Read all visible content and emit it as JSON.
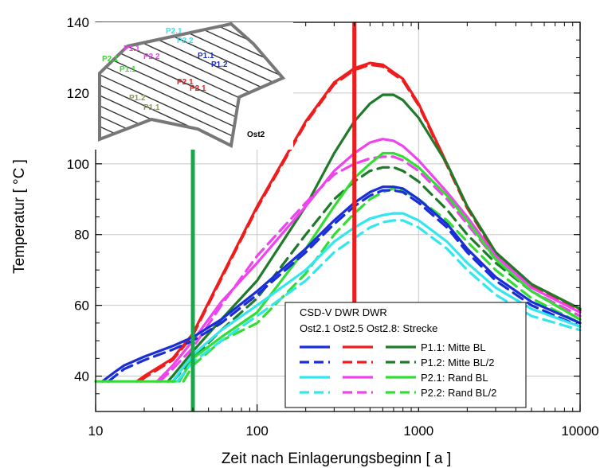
{
  "chart_data": {
    "type": "line",
    "xscale": "log",
    "xlim": [
      10,
      10000
    ],
    "ylim": [
      30,
      140
    ],
    "xticks": [
      10,
      100,
      1000,
      10000
    ],
    "xtick_labels": [
      "10",
      "100",
      "1000",
      "10000"
    ],
    "yticks": [
      40,
      60,
      80,
      100,
      120,
      140
    ],
    "ytick_labels": [
      "40",
      "60",
      "80",
      "100",
      "120",
      "140"
    ],
    "xlabel": "Zeit nach Einlagerungsbeginn   [ a ]",
    "ylabel": "Temperatur   [ °C ]",
    "grid": true,
    "legend": {
      "placement": "bottom-right",
      "header_line1": "CSD-V DWR   DWR",
      "header_line2": "Ost2.1 Ost2.5 Ost2.8: Strecke",
      "rows": [
        {
          "label": "P1.1: Mitte BL",
          "style": "solid",
          "colors": [
            "#1a2ed6",
            "#ee1c1c",
            "#1f7a2a"
          ]
        },
        {
          "label": "P1.2: Mitte BL/2",
          "style": "dashed",
          "colors": [
            "#1a2ed6",
            "#ee1c1c",
            "#1f7a2a"
          ]
        },
        {
          "label": "P2.1: Rand BL",
          "style": "solid",
          "colors": [
            "#33e6ee",
            "#ee44ee",
            "#33dd33"
          ]
        },
        {
          "label": "P2.2: Rand BL/2",
          "style": "dashed",
          "colors": [
            "#33e6ee",
            "#ee44ee",
            "#33dd33"
          ]
        }
      ]
    },
    "vertical_markers": [
      {
        "x": 40,
        "y_from": 30,
        "y_to": 106,
        "color": "#1aa64a"
      },
      {
        "x": 400,
        "y_from": 56,
        "y_to": 140,
        "color": "#ee1c1c"
      }
    ],
    "series": [
      {
        "color": "#ee1c1c",
        "style": "solid",
        "points": [
          [
            18,
            38.5
          ],
          [
            20,
            40
          ],
          [
            30,
            45
          ],
          [
            40,
            52
          ],
          [
            60,
            68
          ],
          [
            100,
            88
          ],
          [
            200,
            112
          ],
          [
            300,
            123
          ],
          [
            400,
            127
          ],
          [
            500,
            128.5
          ],
          [
            600,
            128
          ],
          [
            800,
            124
          ],
          [
            1000,
            117
          ],
          [
            1500,
            100
          ],
          [
            2000,
            88
          ],
          [
            3000,
            75
          ],
          [
            5000,
            66
          ],
          [
            10000,
            59
          ]
        ]
      },
      {
        "color": "#ee1c1c",
        "style": "dashed",
        "points": [
          [
            19,
            38.5
          ],
          [
            20,
            39.5
          ],
          [
            30,
            44.5
          ],
          [
            40,
            51.5
          ],
          [
            60,
            67.5
          ],
          [
            100,
            87.5
          ],
          [
            200,
            111.5
          ],
          [
            300,
            122.5
          ],
          [
            400,
            126.5
          ],
          [
            500,
            128
          ],
          [
            600,
            127.5
          ],
          [
            800,
            123.5
          ],
          [
            1000,
            116.5
          ],
          [
            1500,
            99.5
          ],
          [
            2000,
            87.5
          ],
          [
            3000,
            74.5
          ],
          [
            5000,
            65.5
          ],
          [
            10000,
            58.5
          ]
        ]
      },
      {
        "color": "#1f7a2a",
        "style": "solid",
        "points": [
          [
            28,
            38.5
          ],
          [
            30,
            40
          ],
          [
            40,
            47
          ],
          [
            60,
            56
          ],
          [
            100,
            67
          ],
          [
            200,
            88
          ],
          [
            300,
            103
          ],
          [
            400,
            112
          ],
          [
            500,
            117
          ],
          [
            600,
            119.5
          ],
          [
            700,
            119.5
          ],
          [
            800,
            118
          ],
          [
            1000,
            113
          ],
          [
            1500,
            100
          ],
          [
            2000,
            88
          ],
          [
            3000,
            75
          ],
          [
            5000,
            66
          ],
          [
            10000,
            59
          ]
        ]
      },
      {
        "color": "#1f7a2a",
        "style": "dashed",
        "points": [
          [
            30,
            38.5
          ],
          [
            40,
            45
          ],
          [
            60,
            53
          ],
          [
            100,
            62
          ],
          [
            200,
            80
          ],
          [
            300,
            90
          ],
          [
            400,
            95
          ],
          [
            500,
            98
          ],
          [
            600,
            99
          ],
          [
            700,
            99
          ],
          [
            800,
            98
          ],
          [
            1000,
            95
          ],
          [
            1500,
            87
          ],
          [
            2000,
            80
          ],
          [
            3000,
            72
          ],
          [
            5000,
            64
          ],
          [
            10000,
            56
          ]
        ]
      },
      {
        "color": "#ee44ee",
        "style": "solid",
        "points": [
          [
            24,
            38.5
          ],
          [
            30,
            43
          ],
          [
            40,
            50
          ],
          [
            60,
            61
          ],
          [
            100,
            72
          ],
          [
            200,
            88
          ],
          [
            300,
            98
          ],
          [
            400,
            103
          ],
          [
            500,
            106
          ],
          [
            600,
            107
          ],
          [
            700,
            106.5
          ],
          [
            800,
            105
          ],
          [
            1000,
            101
          ],
          [
            1500,
            92
          ],
          [
            2000,
            85
          ],
          [
            3000,
            74
          ],
          [
            5000,
            65
          ],
          [
            10000,
            58
          ]
        ]
      },
      {
        "color": "#ee44ee",
        "style": "dashed",
        "points": [
          [
            25,
            38.5
          ],
          [
            30,
            42
          ],
          [
            40,
            48
          ],
          [
            60,
            60
          ],
          [
            100,
            74
          ],
          [
            200,
            89
          ],
          [
            300,
            97
          ],
          [
            400,
            100
          ],
          [
            500,
            101.5
          ],
          [
            600,
            102
          ],
          [
            700,
            102
          ],
          [
            800,
            101
          ],
          [
            1000,
            98
          ],
          [
            1500,
            90
          ],
          [
            2000,
            83
          ],
          [
            3000,
            73
          ],
          [
            5000,
            64
          ],
          [
            10000,
            57
          ]
        ]
      },
      {
        "color": "#33dd33",
        "style": "solid",
        "points": [
          [
            33,
            38.5
          ],
          [
            40,
            45
          ],
          [
            60,
            51
          ],
          [
            100,
            58
          ],
          [
            200,
            76
          ],
          [
            300,
            88
          ],
          [
            400,
            96
          ],
          [
            500,
            100
          ],
          [
            600,
            103
          ],
          [
            700,
            103
          ],
          [
            800,
            102
          ],
          [
            1000,
            99
          ],
          [
            1500,
            91
          ],
          [
            2000,
            84
          ],
          [
            3000,
            73
          ],
          [
            5000,
            64
          ],
          [
            10000,
            56
          ]
        ]
      },
      {
        "color": "#33dd33",
        "style": "dashed",
        "points": [
          [
            35,
            38.5
          ],
          [
            40,
            43
          ],
          [
            60,
            50
          ],
          [
            100,
            55
          ],
          [
            200,
            69
          ],
          [
            300,
            80
          ],
          [
            400,
            86
          ],
          [
            500,
            90
          ],
          [
            600,
            92
          ],
          [
            700,
            93
          ],
          [
            800,
            92.5
          ],
          [
            1000,
            90
          ],
          [
            1500,
            84
          ],
          [
            2000,
            78
          ],
          [
            3000,
            70
          ],
          [
            5000,
            62
          ],
          [
            10000,
            55
          ]
        ]
      },
      {
        "color": "#1a2ed6",
        "style": "solid",
        "points": [
          [
            11,
            38.5
          ],
          [
            13,
            41
          ],
          [
            15,
            43
          ],
          [
            20,
            45.5
          ],
          [
            30,
            48.5
          ],
          [
            40,
            51
          ],
          [
            60,
            56
          ],
          [
            100,
            64
          ],
          [
            200,
            76
          ],
          [
            300,
            84
          ],
          [
            400,
            89
          ],
          [
            500,
            92
          ],
          [
            600,
            93.5
          ],
          [
            700,
            93.5
          ],
          [
            800,
            93
          ],
          [
            1000,
            90
          ],
          [
            1500,
            83
          ],
          [
            2000,
            76
          ],
          [
            3000,
            68
          ],
          [
            5000,
            61
          ],
          [
            10000,
            55
          ]
        ]
      },
      {
        "color": "#1a2ed6",
        "style": "dashed",
        "points": [
          [
            12,
            38.5
          ],
          [
            15,
            42
          ],
          [
            20,
            44.5
          ],
          [
            30,
            47.5
          ],
          [
            40,
            50
          ],
          [
            60,
            55
          ],
          [
            100,
            63
          ],
          [
            200,
            75
          ],
          [
            300,
            83
          ],
          [
            400,
            88
          ],
          [
            500,
            91
          ],
          [
            600,
            92.5
          ],
          [
            700,
            92.5
          ],
          [
            800,
            92
          ],
          [
            1000,
            89
          ],
          [
            1500,
            82
          ],
          [
            2000,
            75
          ],
          [
            3000,
            67
          ],
          [
            5000,
            60
          ],
          [
            10000,
            54
          ]
        ]
      },
      {
        "color": "#33e6ee",
        "style": "solid",
        "points": [
          [
            30,
            38.5
          ],
          [
            40,
            46
          ],
          [
            60,
            53
          ],
          [
            100,
            60
          ],
          [
            200,
            70
          ],
          [
            300,
            78
          ],
          [
            400,
            82
          ],
          [
            500,
            84.5
          ],
          [
            600,
            85.5
          ],
          [
            700,
            86
          ],
          [
            800,
            86
          ],
          [
            1000,
            84
          ],
          [
            1500,
            78
          ],
          [
            2000,
            72
          ],
          [
            3000,
            65
          ],
          [
            5000,
            59
          ],
          [
            10000,
            54
          ]
        ]
      },
      {
        "color": "#33e6ee",
        "style": "dashed",
        "points": [
          [
            32,
            38.5
          ],
          [
            40,
            44
          ],
          [
            60,
            50
          ],
          [
            100,
            57
          ],
          [
            200,
            67
          ],
          [
            300,
            75
          ],
          [
            400,
            79
          ],
          [
            500,
            82
          ],
          [
            600,
            83.5
          ],
          [
            700,
            84
          ],
          [
            800,
            84
          ],
          [
            1000,
            82
          ],
          [
            1500,
            76
          ],
          [
            2000,
            70
          ],
          [
            3000,
            63
          ],
          [
            5000,
            57
          ],
          [
            10000,
            53
          ]
        ]
      },
      {
        "color": "#33dd33",
        "style": "solid",
        "points": [
          [
            10,
            38.5
          ],
          [
            31,
            38.5
          ]
        ]
      }
    ],
    "inset_labels": [
      {
        "text": "P1.1",
        "color": "#1a2ed6"
      },
      {
        "text": "P1.2",
        "color": "#1a2ed6"
      },
      {
        "text": "P2.1",
        "color": "#ee1c1c"
      },
      {
        "text": "P2.1",
        "color": "#ee1c1c"
      },
      {
        "text": "P1.1",
        "color": "#ee44ee"
      },
      {
        "text": "P2.2",
        "color": "#ee44ee"
      },
      {
        "text": "P2.1",
        "color": "#33dd33"
      },
      {
        "text": "P1.1",
        "color": "#33dd33"
      },
      {
        "text": "P2.1",
        "color": "#33e6ee"
      },
      {
        "text": "P2.2",
        "color": "#33e6ee"
      },
      {
        "text": "P1.2",
        "color": "#8a9a4a"
      },
      {
        "text": "P1.1",
        "color": "#8a9a4a"
      },
      {
        "text": "Ost2",
        "color": "#000000"
      }
    ]
  }
}
